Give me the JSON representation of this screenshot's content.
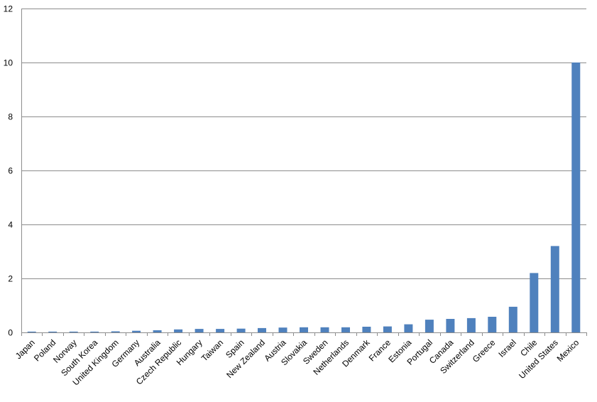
{
  "chart_data": {
    "type": "bar",
    "title": "",
    "xlabel": "",
    "ylabel": "",
    "categories": [
      "Japan",
      "Poland",
      "Norway",
      "South Korea",
      "United Kingdom",
      "Germany",
      "Australia",
      "Czech Republic",
      "Hungary",
      "Taiwan",
      "Spain",
      "New Zealand",
      "Austria",
      "Slovakia",
      "Sweden",
      "Netherlands",
      "Denmark",
      "France",
      "Estonia",
      "Portugal",
      "Canada",
      "Switzerland",
      "Greece",
      "Israel",
      "Chile",
      "United States",
      "Mexico"
    ],
    "values": [
      0.03,
      0.03,
      0.03,
      0.03,
      0.04,
      0.06,
      0.08,
      0.11,
      0.13,
      0.13,
      0.14,
      0.16,
      0.18,
      0.19,
      0.19,
      0.19,
      0.21,
      0.22,
      0.3,
      0.47,
      0.5,
      0.53,
      0.58,
      0.95,
      2.2,
      3.2,
      10.0
    ],
    "ylim": [
      0,
      12
    ],
    "yticks": [
      "0",
      "2",
      "4",
      "6",
      "8",
      "10",
      "12"
    ],
    "grid": true,
    "legend": "none",
    "bar_color": "#4f81bd",
    "grid_color": "#8c8c8c"
  }
}
